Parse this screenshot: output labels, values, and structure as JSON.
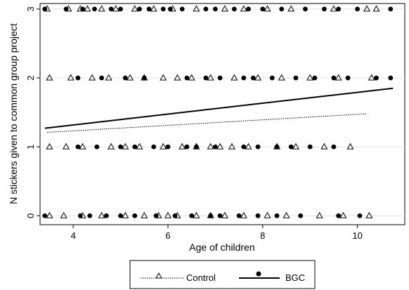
{
  "chart_data": {
    "type": "scatter",
    "xlabel": "Age of children",
    "ylabel": "N stickers given to common group project",
    "xlim": [
      3.3,
      11.0
    ],
    "ylim": [
      -0.13,
      3.08
    ],
    "xticks": [
      4,
      6,
      8,
      10
    ],
    "yticks": [
      0,
      1,
      2,
      3
    ],
    "grid": "horizontal",
    "legend_position": "bottom",
    "series": [
      {
        "name": "Control",
        "marker": "triangle",
        "line_style": "dotted",
        "fit": {
          "x": [
            3.45,
            10.2
          ],
          "y": [
            1.21,
            1.48
          ]
        },
        "points": [
          [
            3.45,
            3
          ],
          [
            3.9,
            3
          ],
          [
            4.15,
            3
          ],
          [
            4.3,
            3
          ],
          [
            4.6,
            3
          ],
          [
            4.9,
            3
          ],
          [
            5.3,
            3
          ],
          [
            5.7,
            3
          ],
          [
            6.1,
            3
          ],
          [
            6.6,
            3
          ],
          [
            7.2,
            3
          ],
          [
            7.6,
            3
          ],
          [
            8.1,
            3
          ],
          [
            8.6,
            3
          ],
          [
            9.5,
            3
          ],
          [
            10.2,
            3
          ],
          [
            10.4,
            3
          ],
          [
            3.5,
            2
          ],
          [
            3.95,
            2
          ],
          [
            4.4,
            2
          ],
          [
            4.75,
            2
          ],
          [
            5.2,
            2
          ],
          [
            5.5,
            2
          ],
          [
            5.9,
            2
          ],
          [
            6.2,
            2
          ],
          [
            6.5,
            2
          ],
          [
            6.9,
            2
          ],
          [
            7.4,
            2
          ],
          [
            7.9,
            2
          ],
          [
            8.4,
            2
          ],
          [
            9.0,
            2
          ],
          [
            9.6,
            2
          ],
          [
            10.3,
            2
          ],
          [
            3.5,
            1
          ],
          [
            3.85,
            1
          ],
          [
            4.2,
            1
          ],
          [
            4.8,
            1
          ],
          [
            5.1,
            1
          ],
          [
            5.4,
            1
          ],
          [
            5.9,
            1
          ],
          [
            6.3,
            1
          ],
          [
            6.6,
            1
          ],
          [
            6.9,
            1
          ],
          [
            7.1,
            1
          ],
          [
            7.35,
            1
          ],
          [
            7.7,
            1
          ],
          [
            8.3,
            1
          ],
          [
            8.7,
            1
          ],
          [
            9.3,
            1
          ],
          [
            9.85,
            1
          ],
          [
            3.5,
            0
          ],
          [
            3.8,
            0
          ],
          [
            4.2,
            0
          ],
          [
            4.6,
            0
          ],
          [
            5.1,
            0
          ],
          [
            5.5,
            0
          ],
          [
            5.8,
            0
          ],
          [
            6.0,
            0
          ],
          [
            6.2,
            0
          ],
          [
            6.6,
            0
          ],
          [
            6.9,
            0
          ],
          [
            7.2,
            0
          ],
          [
            7.6,
            0
          ],
          [
            8.1,
            0
          ],
          [
            8.5,
            0
          ],
          [
            9.2,
            0
          ],
          [
            9.7,
            0
          ],
          [
            10.25,
            0
          ]
        ]
      },
      {
        "name": "BGC",
        "marker": "circle",
        "line_style": "solid",
        "fit": {
          "x": [
            3.4,
            10.75
          ],
          "y": [
            1.27,
            1.85
          ]
        },
        "points": [
          [
            3.4,
            3
          ],
          [
            3.85,
            3
          ],
          [
            4.2,
            3
          ],
          [
            4.45,
            3
          ],
          [
            4.8,
            3
          ],
          [
            5.0,
            3
          ],
          [
            5.4,
            3
          ],
          [
            5.6,
            3
          ],
          [
            5.9,
            3
          ],
          [
            6.05,
            3
          ],
          [
            6.3,
            3
          ],
          [
            6.8,
            3
          ],
          [
            7.0,
            3
          ],
          [
            7.4,
            3
          ],
          [
            7.7,
            3
          ],
          [
            8.0,
            3
          ],
          [
            8.4,
            3
          ],
          [
            8.9,
            3
          ],
          [
            9.3,
            3
          ],
          [
            9.6,
            3
          ],
          [
            10.0,
            3
          ],
          [
            10.7,
            3
          ],
          [
            4.1,
            2
          ],
          [
            4.6,
            2
          ],
          [
            5.1,
            2
          ],
          [
            5.5,
            2
          ],
          [
            6.4,
            2
          ],
          [
            6.8,
            2
          ],
          [
            7.1,
            2
          ],
          [
            7.6,
            2
          ],
          [
            7.8,
            2
          ],
          [
            8.2,
            2
          ],
          [
            8.7,
            2
          ],
          [
            9.1,
            2
          ],
          [
            9.5,
            2
          ],
          [
            9.8,
            2
          ],
          [
            10.4,
            2
          ],
          [
            10.7,
            2
          ],
          [
            4.1,
            1
          ],
          [
            4.5,
            1
          ],
          [
            5.0,
            1
          ],
          [
            5.3,
            1
          ],
          [
            5.7,
            1
          ],
          [
            6.0,
            1
          ],
          [
            6.4,
            1
          ],
          [
            6.6,
            1
          ],
          [
            7.0,
            1
          ],
          [
            7.6,
            1
          ],
          [
            7.9,
            1
          ],
          [
            8.3,
            1
          ],
          [
            8.6,
            1
          ],
          [
            9.0,
            1
          ],
          [
            9.5,
            1
          ],
          [
            3.4,
            0
          ],
          [
            4.15,
            0
          ],
          [
            4.35,
            0
          ],
          [
            4.7,
            0
          ],
          [
            5.0,
            0
          ],
          [
            5.3,
            0
          ],
          [
            5.75,
            0
          ],
          [
            6.15,
            0
          ],
          [
            6.5,
            0
          ],
          [
            6.9,
            0
          ],
          [
            7.1,
            0
          ],
          [
            7.5,
            0
          ],
          [
            7.9,
            0
          ],
          [
            8.3,
            0
          ],
          [
            8.8,
            0
          ],
          [
            9.6,
            0
          ],
          [
            10.05,
            0
          ]
        ]
      }
    ]
  }
}
